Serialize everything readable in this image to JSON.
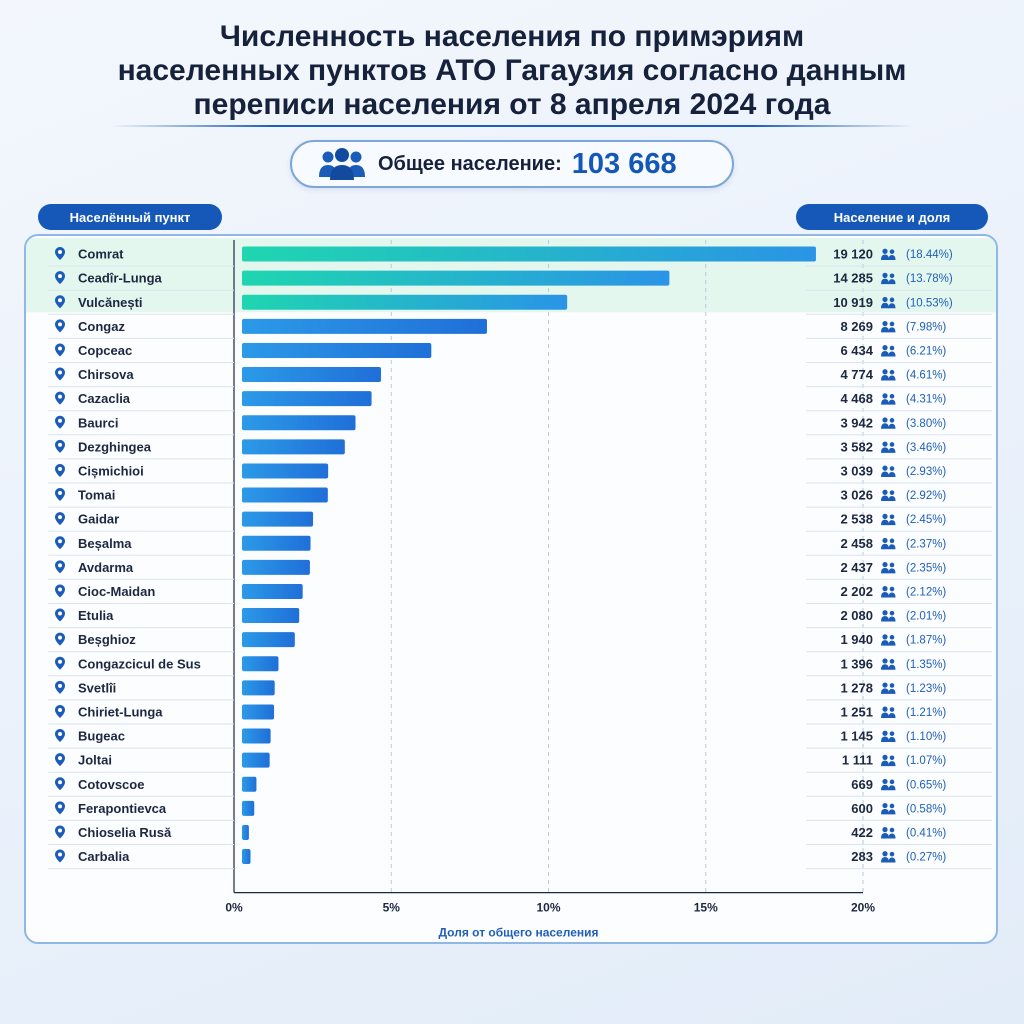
{
  "header": {
    "title_lines": [
      "Численность населения по примэриям",
      "населенных пунктов АТО Гагаузия согласно данным",
      "переписи населения от 8 апреля 2024 года"
    ],
    "total_label": "Общее население:",
    "total_value": "103 668",
    "total_icon": "people-group-icon"
  },
  "columns": {
    "left": "Населённый пункт",
    "right": "Население и доля"
  },
  "colors": {
    "accent": "#1658b8",
    "bar_top": "#1fd6b0",
    "bar_main": "#2a8ae6",
    "highlight_row": "#e4f7ef"
  },
  "chart_data": {
    "type": "bar",
    "orientation": "horizontal",
    "xlabel": "Доля от общего населения",
    "xlim": [
      0,
      20
    ],
    "xticks": [
      "0%",
      "5%",
      "10%",
      "15%",
      "20%"
    ],
    "grid": true,
    "highlighted_top": 3,
    "categories": [
      "Comrat",
      "Ceadîr-Lunga",
      "Vulcănești",
      "Congaz",
      "Copceac",
      "Chirsova",
      "Cazaclia",
      "Baurci",
      "Dezghingea",
      "Cișmichioi",
      "Tomai",
      "Gaidar",
      "Beșalma",
      "Avdarma",
      "Cioc-Maidan",
      "Etulia",
      "Beșghioz",
      "Congazcicul de Sus",
      "Svetlîi",
      "Chiriet-Lunga",
      "Bugeac",
      "Joltai",
      "Cotovscoe",
      "Ferapontievca",
      "Chioselia Rusă",
      "Carbalia"
    ],
    "values": [
      18.44,
      13.78,
      10.53,
      7.98,
      6.21,
      4.61,
      4.31,
      3.8,
      3.46,
      2.93,
      2.92,
      2.45,
      2.37,
      2.35,
      2.12,
      2.01,
      1.87,
      1.35,
      1.23,
      1.21,
      1.1,
      1.07,
      0.65,
      0.58,
      0.41,
      0.27
    ],
    "population_labels": [
      "19 120",
      "14 285",
      "10 919",
      "8 269",
      "6 434",
      "4 774",
      "4 468",
      "3 942",
      "3 582",
      "3 039",
      "3 026",
      "2 538",
      "2 458",
      "2 437",
      "2 202",
      "2 080",
      "1 940",
      "1 396",
      "1 278",
      "1 251",
      "1 145",
      "1 111",
      "669",
      "600",
      "422",
      "283"
    ],
    "share_labels": [
      "(18.44%)",
      "(13.78%)",
      "(10.53%)",
      "(7.98%)",
      "(6.21%)",
      "(4.61%)",
      "(4.31%)",
      "(3.80%)",
      "(3.46%)",
      "(2.93%)",
      "(2.92%)",
      "(2.45%)",
      "(2.37%)",
      "(2.35%)",
      "(2.12%)",
      "(2.01%)",
      "(1.87%)",
      "(1.35%)",
      "(1.23%)",
      "(1.21%)",
      "(1.10%)",
      "(1.07%)",
      "(0.65%)",
      "(0.58%)",
      "(0.41%)",
      "(0.27%)"
    ]
  }
}
